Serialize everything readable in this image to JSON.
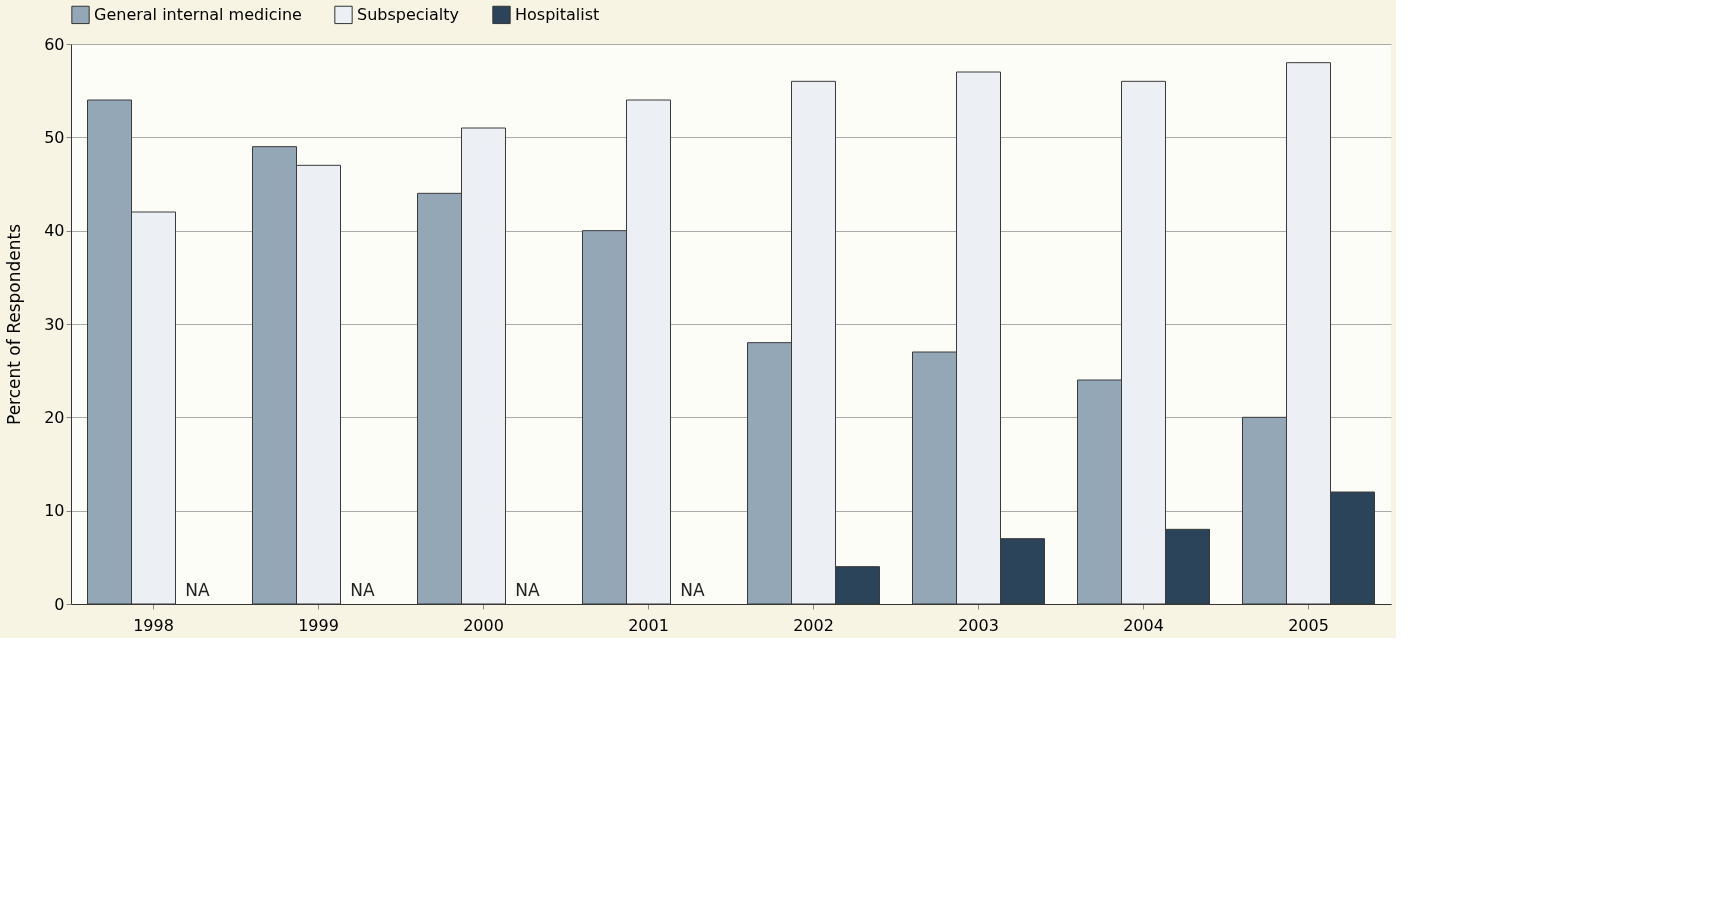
{
  "chart_data": {
    "type": "bar",
    "ylabel": "Percent of Respondents",
    "categories": [
      "1998",
      "1999",
      "2000",
      "2001",
      "2002",
      "2003",
      "2004",
      "2005"
    ],
    "series": [
      {
        "name": "General internal medicine",
        "color": "#94a7b7",
        "values": [
          54,
          49,
          44,
          40,
          28,
          27,
          24,
          20
        ]
      },
      {
        "name": "Subspecialty",
        "color": "#eceff4",
        "values": [
          42,
          47,
          51,
          54,
          56,
          57,
          56,
          58
        ]
      },
      {
        "name": "Hospitalist",
        "color": "#2c4459",
        "values": [
          null,
          null,
          null,
          null,
          4,
          7,
          8,
          12
        ]
      }
    ],
    "annotations": [
      {
        "text": "NA",
        "x": "1998",
        "y": 0
      },
      {
        "text": "NA",
        "x": "1999",
        "y": 0
      },
      {
        "text": "NA",
        "x": "2000",
        "y": 0
      },
      {
        "text": "NA",
        "x": "2001",
        "y": 0
      }
    ],
    "ylim": [
      0,
      60
    ],
    "yticks": [
      0,
      10,
      20,
      30,
      40,
      50,
      60
    ],
    "grid": "y",
    "legend": "top"
  }
}
